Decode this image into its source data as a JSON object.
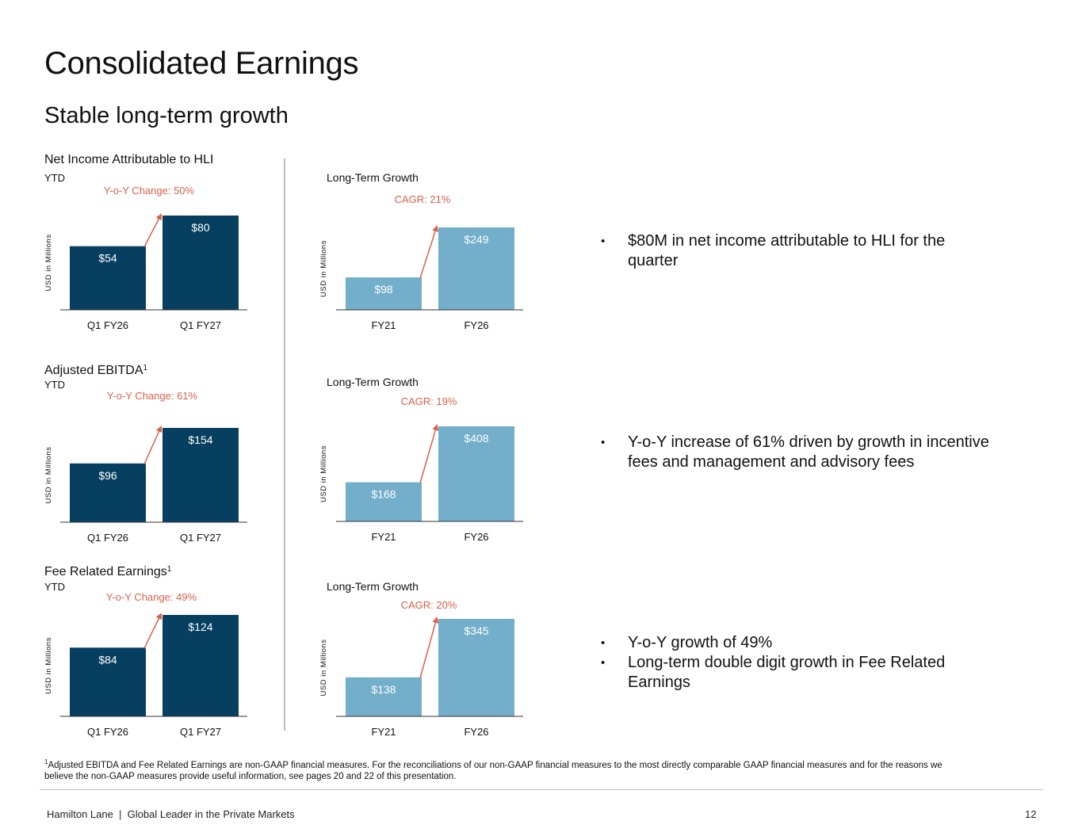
{
  "header": {
    "title": "Consolidated Earnings",
    "subtitle": "Stable long-term growth"
  },
  "colors": {
    "dark_bar": "#063f5f",
    "light_bar": "#73aecb",
    "accent": "#d9604a"
  },
  "chart_data": [
    {
      "type": "bar",
      "title": "Net Income Attributable to HLI",
      "period_label": "YTD",
      "annotation": "Y-o-Y Change: 50%",
      "ylabel": "USD in Millions",
      "categories": [
        "Q1 FY26",
        "Q1 FY27"
      ],
      "values": [
        54,
        80
      ],
      "data_labels": [
        "$54",
        "$80"
      ],
      "ylim": [
        0,
        80
      ],
      "color": "#063f5f"
    },
    {
      "type": "bar",
      "title": "Long-Term Growth",
      "annotation": "CAGR: 21%",
      "ylabel": "USD in Millions",
      "categories": [
        "FY21",
        "FY26"
      ],
      "values": [
        98,
        249
      ],
      "data_labels": [
        "$98",
        "$249"
      ],
      "ylim": [
        0,
        249
      ],
      "color": "#73aecb"
    },
    {
      "type": "bar",
      "title": "Adjusted EBITDA",
      "title_sup": "1",
      "period_label": "YTD",
      "annotation": "Y-o-Y Change: 61%",
      "ylabel": "USD in Millions",
      "categories": [
        "Q1 FY26",
        "Q1 FY27"
      ],
      "values": [
        96,
        154
      ],
      "data_labels": [
        "$96",
        "$154"
      ],
      "ylim": [
        0,
        154
      ],
      "color": "#063f5f"
    },
    {
      "type": "bar",
      "title": "Long-Term Growth",
      "annotation": "CAGR: 19%",
      "ylabel": "USD in Millions",
      "categories": [
        "FY21",
        "FY26"
      ],
      "values": [
        168,
        408
      ],
      "data_labels": [
        "$168",
        "$408"
      ],
      "ylim": [
        0,
        408
      ],
      "color": "#73aecb"
    },
    {
      "type": "bar",
      "title": "Fee Related Earnings",
      "title_sup": "1",
      "period_label": "YTD",
      "annotation": "Y-o-Y Change: 49%",
      "ylabel": "USD in Millions",
      "categories": [
        "Q1 FY26",
        "Q1 FY27"
      ],
      "values": [
        84,
        124
      ],
      "data_labels": [
        "$84",
        "$124"
      ],
      "ylim": [
        0,
        124
      ],
      "color": "#063f5f"
    },
    {
      "type": "bar",
      "title": "Long-Term Growth",
      "annotation": "CAGR: 20%",
      "ylabel": "USD in Millions",
      "categories": [
        "FY21",
        "FY26"
      ],
      "values": [
        138,
        345
      ],
      "data_labels": [
        "$138",
        "$345"
      ],
      "ylim": [
        0,
        345
      ],
      "color": "#73aecb"
    }
  ],
  "bullets": [
    {
      "items": [
        "$80M in net income attributable to HLI for the quarter"
      ]
    },
    {
      "items": [
        "Y-o-Y increase of 61% driven by growth in incentive fees and management and advisory fees"
      ]
    },
    {
      "items": [
        "Y-o-Y growth of 49%",
        "Long-term double digit growth in Fee Related Earnings"
      ]
    }
  ],
  "footnote": {
    "marker": "1",
    "text": "Adjusted EBITDA and Fee Related Earnings are non-GAAP financial measures. For the reconciliations of our non-GAAP financial measures to the most directly comparable GAAP financial measures and for the reasons we believe the non-GAAP measures provide useful information, see pages 20 and 22 of this presentation."
  },
  "footer": {
    "left": "Hamilton Lane  |  Global Leader in the Private Markets",
    "page_number": "12"
  }
}
